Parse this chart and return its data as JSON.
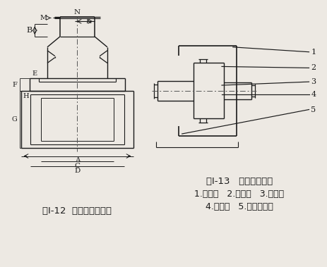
{
  "bg_color": "#ede9e3",
  "line_color": "#1a1a1a",
  "title1": "图Ⅰ-12  单级行星减速器",
  "title2": "图Ⅰ-13   传动机构示意",
  "caption1": "1.太阳轮   2.行星轮   3.内齿圈",
  "caption2": "4.行星架   5.输出小齿轮"
}
